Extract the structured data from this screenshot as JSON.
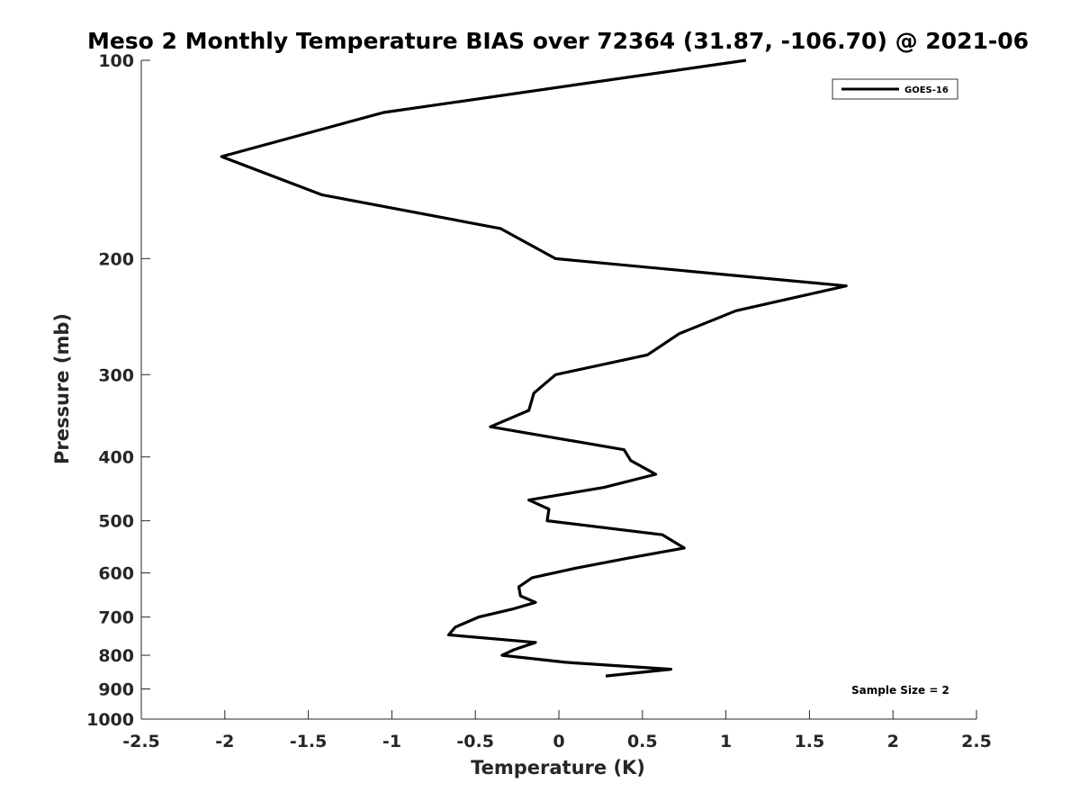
{
  "chart_data": {
    "type": "line",
    "title": "Meso 2 Monthly Temperature BIAS over 72364 (31.87, -106.70) @ 2021-06",
    "xlabel": "Temperature (K)",
    "ylabel": "Pressure (mb)",
    "xlim": [
      -2.5,
      2.5
    ],
    "ylim": [
      100,
      1000
    ],
    "y_scale": "log",
    "y_reversed": true,
    "x_ticks": [
      "-2.5",
      "-2",
      "-1.5",
      "-1",
      "-0.5",
      "0",
      "0.5",
      "1",
      "1.5",
      "2",
      "2.5"
    ],
    "x_tick_values": [
      -2.5,
      -2,
      -1.5,
      -1,
      -0.5,
      0,
      0.5,
      1,
      1.5,
      2,
      2.5
    ],
    "y_ticks": [
      "100",
      "200",
      "300",
      "400",
      "500",
      "600",
      "700",
      "800",
      "900",
      "1000"
    ],
    "y_tick_values": [
      100,
      200,
      300,
      400,
      500,
      600,
      700,
      800,
      900,
      1000
    ],
    "grid": false,
    "legend": {
      "position": "top-right"
    },
    "annotation": "Sample Size = 2",
    "series": [
      {
        "name": "GOES-16",
        "color": "#000000",
        "points": [
          {
            "t": 1.12,
            "p": 100
          },
          {
            "t": -1.05,
            "p": 120
          },
          {
            "t": -2.02,
            "p": 140
          },
          {
            "t": -1.42,
            "p": 160
          },
          {
            "t": -0.35,
            "p": 180
          },
          {
            "t": -0.02,
            "p": 200
          },
          {
            "t": 1.72,
            "p": 220
          },
          {
            "t": 1.06,
            "p": 240
          },
          {
            "t": 0.72,
            "p": 260
          },
          {
            "t": 0.53,
            "p": 280
          },
          {
            "t": -0.02,
            "p": 300
          },
          {
            "t": -0.15,
            "p": 320
          },
          {
            "t": -0.18,
            "p": 340
          },
          {
            "t": -0.41,
            "p": 360
          },
          {
            "t": 0.39,
            "p": 390
          },
          {
            "t": 0.43,
            "p": 405
          },
          {
            "t": 0.58,
            "p": 425
          },
          {
            "t": 0.27,
            "p": 445
          },
          {
            "t": -0.18,
            "p": 465
          },
          {
            "t": -0.06,
            "p": 480
          },
          {
            "t": -0.07,
            "p": 500
          },
          {
            "t": 0.62,
            "p": 525
          },
          {
            "t": 0.75,
            "p": 550
          },
          {
            "t": 0.41,
            "p": 570
          },
          {
            "t": 0.1,
            "p": 590
          },
          {
            "t": -0.16,
            "p": 610
          },
          {
            "t": -0.24,
            "p": 630
          },
          {
            "t": -0.23,
            "p": 650
          },
          {
            "t": -0.14,
            "p": 665
          },
          {
            "t": -0.27,
            "p": 680
          },
          {
            "t": -0.48,
            "p": 700
          },
          {
            "t": -0.62,
            "p": 725
          },
          {
            "t": -0.66,
            "p": 745
          },
          {
            "t": -0.14,
            "p": 765
          },
          {
            "t": -0.27,
            "p": 785
          },
          {
            "t": -0.34,
            "p": 800
          },
          {
            "t": 0.04,
            "p": 820
          },
          {
            "t": 0.67,
            "p": 840
          },
          {
            "t": 0.28,
            "p": 860
          }
        ]
      }
    ]
  }
}
